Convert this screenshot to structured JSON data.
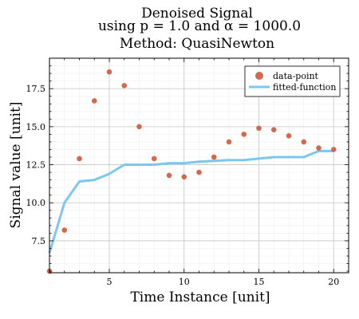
{
  "chart_data": {
    "type": "line",
    "title_lines": [
      "Denoised Signal",
      "using p = 1.0 and α = 1000.0",
      "Method: QuasiNewton"
    ],
    "xlabel": "Time Instance [unit]",
    "ylabel": "Signal value [unit]",
    "xlim": [
      1,
      21
    ],
    "ylim": [
      5.4,
      19.5
    ],
    "xticks": [
      5,
      10,
      15,
      20
    ],
    "yticks": [
      7.5,
      10.0,
      12.5,
      15.0,
      17.5
    ],
    "ytick_labels": [
      "7.5",
      "10.0",
      "12.5",
      "15.0",
      "17.5"
    ],
    "grid": true,
    "legend_position": "top-right",
    "series": [
      {
        "name": "data-point",
        "kind": "scatter",
        "color": "#d2694d",
        "x": [
          1,
          2,
          3,
          4,
          5,
          6,
          7,
          8,
          9,
          10,
          11,
          12,
          13,
          14,
          15,
          16,
          17,
          18,
          19,
          20
        ],
        "y": [
          5.5,
          8.2,
          12.9,
          16.7,
          18.6,
          17.7,
          15.0,
          12.9,
          11.8,
          11.7,
          12.0,
          13.0,
          14.0,
          14.5,
          14.9,
          14.8,
          14.4,
          14.0,
          13.6,
          13.5
        ]
      },
      {
        "name": "fitted-function",
        "kind": "line",
        "color": "#7cc7f2",
        "x": [
          1,
          2,
          3,
          4,
          5,
          6,
          7,
          8,
          9,
          10,
          11,
          12,
          13,
          14,
          15,
          16,
          17,
          18,
          19,
          20
        ],
        "y": [
          6.7,
          10.0,
          11.4,
          11.5,
          11.9,
          12.5,
          12.5,
          12.5,
          12.6,
          12.6,
          12.7,
          12.75,
          12.8,
          12.8,
          12.9,
          13.0,
          13.0,
          13.0,
          13.4,
          13.4
        ]
      }
    ]
  }
}
